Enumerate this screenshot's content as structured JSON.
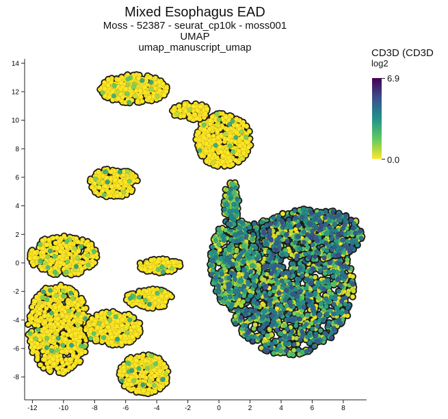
{
  "chart_data": {
    "type": "scatter",
    "title": "Mixed Esophagus EAD",
    "subtitle_lines": [
      "Moss - 52387 - seurat_cp10k - moss001",
      "UMAP",
      "umap_manuscript_umap"
    ],
    "xlabel": "",
    "ylabel": "",
    "xlim": [
      -12.5,
      9.5
    ],
    "ylim": [
      -9.6,
      14.3
    ],
    "x_ticks": [
      -12,
      -10,
      -8,
      -6,
      -4,
      -2,
      0,
      2,
      4,
      6,
      8
    ],
    "y_ticks": [
      -8,
      -6,
      -4,
      -2,
      0,
      2,
      4,
      6,
      8,
      10,
      12,
      14
    ],
    "grid": false,
    "colorbar": {
      "title": "CD3D (CD3D",
      "subtitle": "log2",
      "min_label": "0.0",
      "max_label": "6.9",
      "colormap": "viridis",
      "range": [
        0.0,
        6.9
      ]
    },
    "clusters": [
      {
        "name": "",
        "cx": 4.5,
        "cy": -1.5,
        "rx": 4.2,
        "ry": 5.0,
        "mean_expr": 3.2,
        "points": 1400
      },
      {
        "name": "",
        "cx": 6.0,
        "cy": 2.0,
        "rx": 3.3,
        "ry": 1.8,
        "mean_expr": 3.4,
        "points": 500
      },
      {
        "name": "",
        "cx": 1.0,
        "cy": 0.0,
        "rx": 1.6,
        "ry": 3.2,
        "mean_expr": 2.6,
        "points": 450
      },
      {
        "name": "",
        "cx": 0.8,
        "cy": 4.2,
        "rx": 0.5,
        "ry": 1.6,
        "mean_expr": 2.2,
        "points": 120
      },
      {
        "name": "",
        "cx": 0.3,
        "cy": 8.6,
        "rx": 1.8,
        "ry": 1.9,
        "mean_expr": 0.15,
        "points": 400
      },
      {
        "name": "",
        "cx": -5.5,
        "cy": 12.2,
        "rx": 2.2,
        "ry": 1.0,
        "mean_expr": 0.1,
        "points": 320
      },
      {
        "name": "",
        "cx": -1.8,
        "cy": 10.6,
        "rx": 1.2,
        "ry": 0.6,
        "mean_expr": 0.15,
        "points": 100
      },
      {
        "name": "",
        "cx": -6.8,
        "cy": 5.6,
        "rx": 1.6,
        "ry": 1.0,
        "mean_expr": 0.1,
        "points": 200
      },
      {
        "name": "",
        "cx": -10.0,
        "cy": 0.5,
        "rx": 2.2,
        "ry": 1.4,
        "mean_expr": 0.1,
        "points": 300
      },
      {
        "name": "",
        "cx": -10.3,
        "cy": -4.6,
        "rx": 2.0,
        "ry": 3.2,
        "mean_expr": 0.1,
        "points": 600
      },
      {
        "name": "",
        "cx": -6.8,
        "cy": -4.6,
        "rx": 1.8,
        "ry": 1.2,
        "mean_expr": 0.2,
        "points": 300
      },
      {
        "name": "",
        "cx": -4.8,
        "cy": -7.8,
        "rx": 1.6,
        "ry": 1.4,
        "mean_expr": 0.1,
        "points": 300
      },
      {
        "name": "",
        "cx": -4.5,
        "cy": -2.5,
        "rx": 1.5,
        "ry": 0.7,
        "mean_expr": 0.5,
        "points": 150
      },
      {
        "name": "",
        "cx": -3.8,
        "cy": -0.2,
        "rx": 1.4,
        "ry": 0.5,
        "mean_expr": 0.2,
        "points": 100
      }
    ]
  }
}
